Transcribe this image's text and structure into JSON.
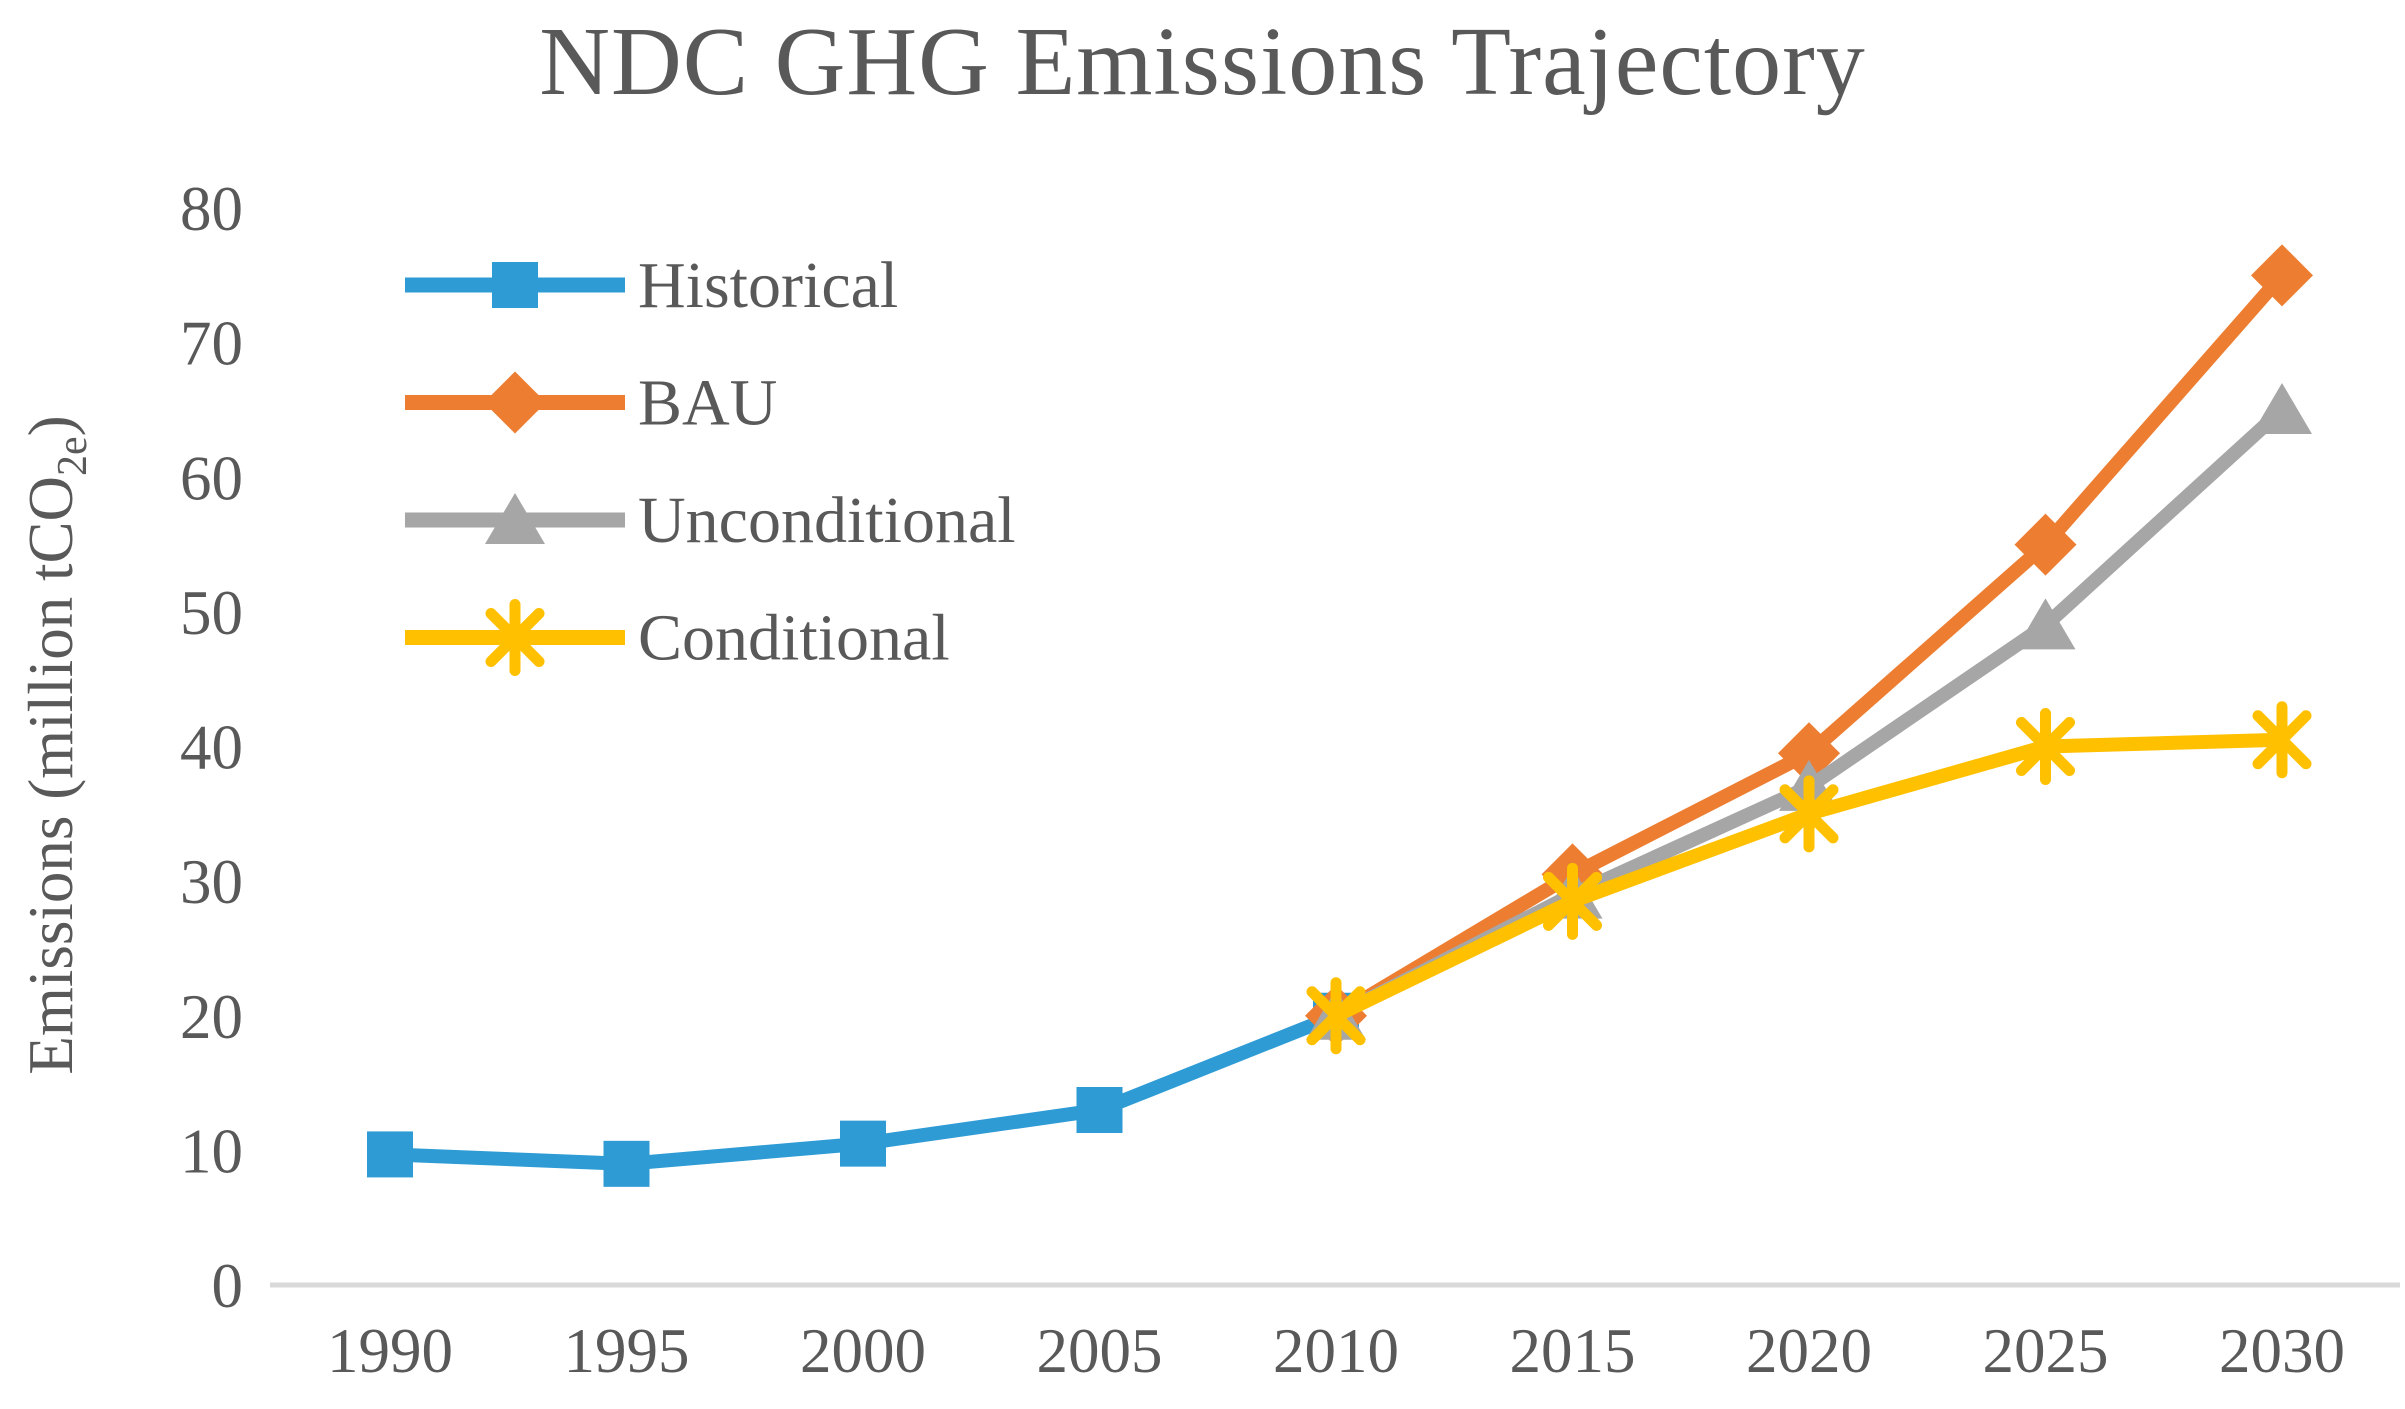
{
  "title": "NDC GHG Emissions Trajectory",
  "colors": {
    "title_text": "#595959",
    "tick_text": "#595959",
    "legend_text": "#595959",
    "axis_line": "#d9d9d9",
    "historical": "#2e9bd5",
    "bau": "#ed7d31",
    "unconditional": "#a6a6a6",
    "conditional": "#ffc000"
  },
  "chart_data": {
    "type": "line",
    "title": "NDC GHG Emissions Trajectory",
    "xlabel": "",
    "ylabel": {
      "prefix": "Emissions (million tCO",
      "sub": "2e",
      "suffix": ")"
    },
    "ylim": [
      0,
      80
    ],
    "yticks": [
      0,
      10,
      20,
      30,
      40,
      50,
      60,
      70,
      80
    ],
    "xticks": [
      1990,
      1995,
      2000,
      2005,
      2010,
      2015,
      2020,
      2025,
      2030
    ],
    "grid": false,
    "legend_position": "upper-left",
    "series": [
      {
        "name": "Historical",
        "color": "#2e9bd5",
        "marker": "square",
        "x": [
          1990,
          1995,
          2000,
          2005,
          2010
        ],
        "y": [
          9.7,
          9.0,
          10.5,
          13.0,
          20.0
        ]
      },
      {
        "name": "BAU",
        "color": "#ed7d31",
        "marker": "diamond",
        "x": [
          2010,
          2015,
          2020,
          2025,
          2030
        ],
        "y": [
          20.0,
          30.5,
          39.5,
          55.0,
          75.0
        ]
      },
      {
        "name": "Unconditional",
        "color": "#a6a6a6",
        "marker": "triangle",
        "x": [
          2010,
          2015,
          2020,
          2025,
          2030
        ],
        "y": [
          20.0,
          29.0,
          37.0,
          49.0,
          65.0
        ]
      },
      {
        "name": "Conditional",
        "color": "#ffc000",
        "marker": "asterisk",
        "x": [
          2010,
          2015,
          2020,
          2025,
          2030
        ],
        "y": [
          20.0,
          28.5,
          35.0,
          40.0,
          40.5
        ]
      }
    ]
  }
}
